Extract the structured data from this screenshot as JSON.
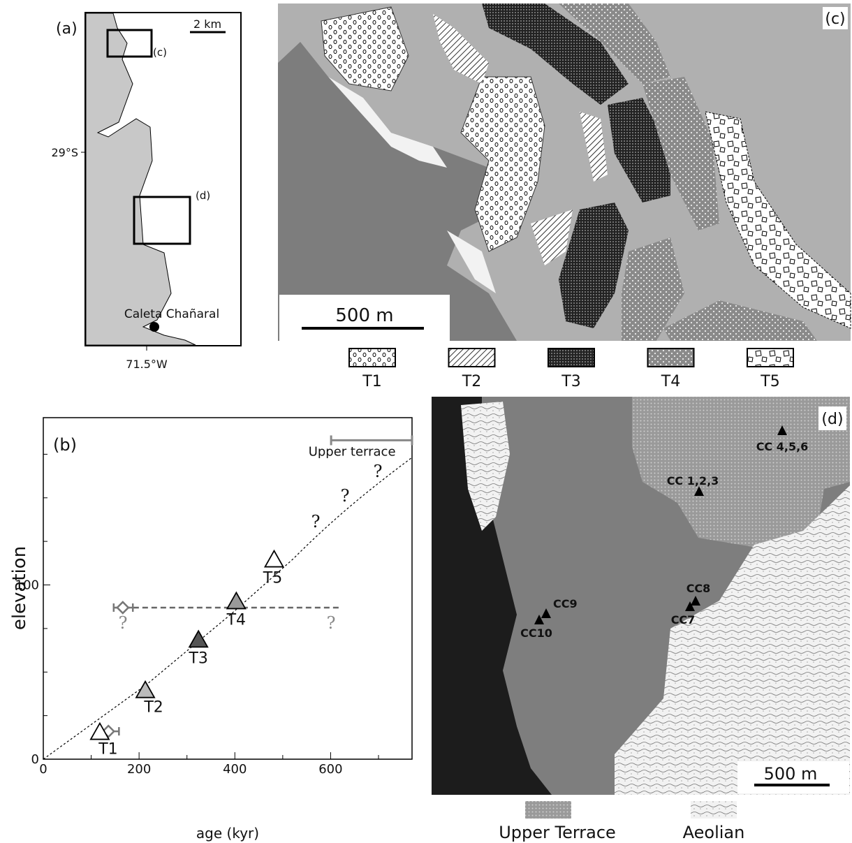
{
  "panel_a": {
    "label": "(a)",
    "scale": "2 km",
    "box_labels": [
      "(c)",
      "(d)"
    ],
    "latitude": "29°S",
    "longitude": "71.5°W",
    "place": "Caleta Chañaral"
  },
  "panel_c": {
    "label": "(c)",
    "scale": "500 m",
    "legend": [
      "T1",
      "T2",
      "T3",
      "T4",
      "T5"
    ]
  },
  "panel_d": {
    "label": "(d)",
    "scale": "500 m",
    "sites": [
      "CC 4,5,6",
      "CC 1,2,3",
      "CC8",
      "CC9",
      "CC7",
      "CC10"
    ],
    "legend": [
      "Upper Terrace",
      "Aeolian"
    ]
  },
  "chart_data": {
    "type": "scatter",
    "label": "(b)",
    "xlabel": "age (kyr)",
    "ylabel": "elevation",
    "xlim": [
      0,
      770
    ],
    "ylim": [
      0,
      196
    ],
    "xticks": [
      0,
      200,
      400,
      600
    ],
    "yticks": [
      0,
      100
    ],
    "x_minor_ticks": [
      100,
      300,
      500,
      700
    ],
    "y_minor_ticks": [
      25,
      50,
      75,
      125,
      150,
      175
    ],
    "points": {
      "labels": [
        "T1",
        "T2",
        "T3",
        "T4",
        "T5"
      ],
      "x": [
        118,
        213,
        324,
        403,
        482
      ],
      "y": [
        15,
        39,
        68,
        90,
        114
      ],
      "colors": [
        "#ffffff",
        "#bbbbbb",
        "#555555",
        "#999999",
        "#ffffff"
      ]
    },
    "diamonds": {
      "color": "#777777",
      "x": [
        136,
        166
      ],
      "y": [
        16,
        87
      ],
      "xmin": [
        117,
        147
      ],
      "xmax": [
        158,
        187
      ]
    },
    "upper_terrace": {
      "label": "Upper terrace",
      "xmin": 601,
      "xmax": 770,
      "y": 183,
      "color": "#888888"
    },
    "correlation_line": {
      "y": 87,
      "xmin": 150,
      "xmax": 620,
      "color": "#666666"
    },
    "question_marks": [
      "?",
      "?",
      "?",
      "?",
      "?"
    ]
  }
}
